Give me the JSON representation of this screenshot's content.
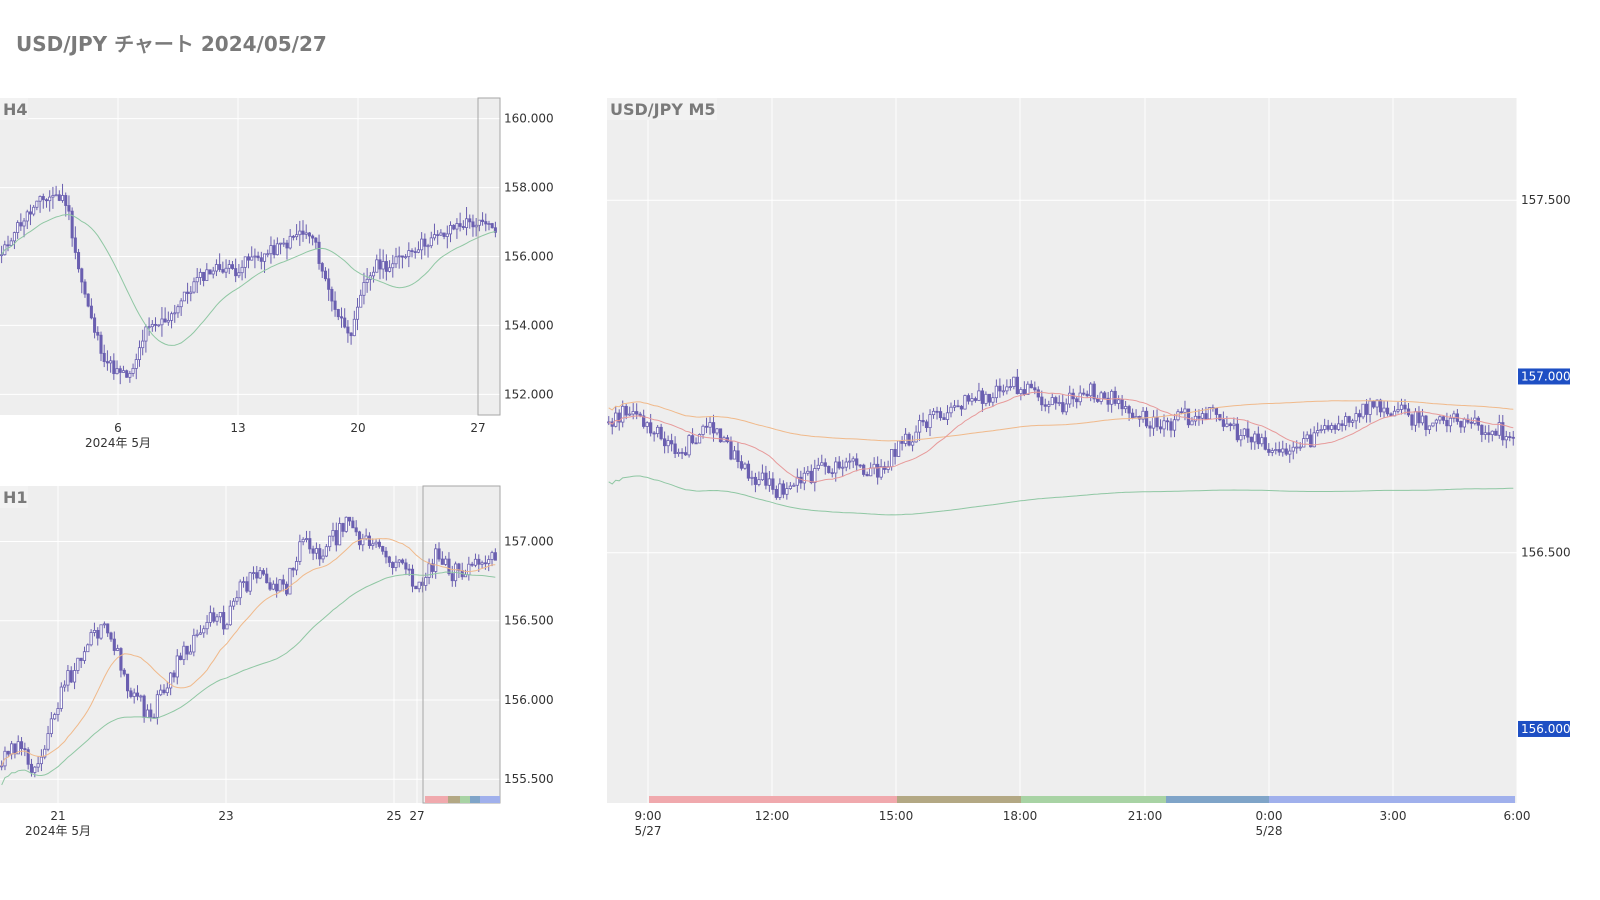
{
  "header": {
    "title": "USD/JPY チャート 2024/05/27"
  },
  "colors": {
    "plot_bg": "#eeeeee",
    "grid": "#ffffff",
    "candle": "#6a5fb0",
    "ma_green": "#8fc7a3",
    "ma_orange": "#f0b98a",
    "ma_red": "#e79a9a",
    "label_bg": "#1e4fc4"
  },
  "chart_data": [
    {
      "id": "h4",
      "type": "candlestick",
      "title": "H4",
      "y_ticks": [
        "160.000",
        "158.000",
        "156.000",
        "154.000",
        "152.000"
      ],
      "y_tick_values": [
        160,
        158,
        156,
        154,
        152
      ],
      "ylim": [
        151.4,
        160.6
      ],
      "x_ticks": [
        "6",
        "13",
        "20",
        "27"
      ],
      "x_sub": "2024年 5月",
      "legend": "none",
      "grid": true,
      "approx_close_path": [
        156.0,
        156.8,
        157.2,
        157.6,
        157.8,
        157.6,
        155.5,
        154.0,
        153.0,
        152.6,
        152.5,
        153.8,
        154.0,
        154.3,
        154.8,
        155.3,
        155.6,
        155.7,
        155.6,
        155.9,
        156.0,
        156.2,
        156.4,
        156.7,
        156.5,
        155.2,
        154.2,
        153.8,
        155.3,
        155.8,
        155.7,
        156.1,
        156.3,
        156.5,
        156.6,
        156.9,
        157.0,
        156.9,
        156.8
      ]
    },
    {
      "id": "h1",
      "type": "candlestick",
      "title": "H1",
      "y_ticks": [
        "157.000",
        "156.500",
        "156.000",
        "155.500"
      ],
      "y_tick_values": [
        157.0,
        156.5,
        156.0,
        155.5
      ],
      "ylim": [
        155.35,
        157.35
      ],
      "x_ticks": [
        "21",
        "23",
        "25",
        "27"
      ],
      "x_sub": "2024年 5月",
      "legend": "none",
      "grid": true,
      "approx_close_path": [
        155.6,
        155.7,
        155.6,
        155.7,
        156.1,
        156.2,
        156.4,
        156.5,
        156.2,
        156.0,
        155.9,
        156.1,
        156.3,
        156.4,
        156.5,
        156.5,
        156.7,
        156.8,
        156.7,
        156.7,
        157.0,
        156.9,
        157.0,
        157.1,
        157.0,
        157.0,
        156.9,
        156.8,
        156.7,
        156.9,
        156.8,
        156.8,
        156.9,
        156.9
      ]
    },
    {
      "id": "m5",
      "type": "candlestick",
      "title": "USD/JPY M5",
      "y_ticks": [
        "157.500",
        "156.500"
      ],
      "y_tick_values": [
        157.5,
        156.5
      ],
      "ylim": [
        155.79,
        157.79
      ],
      "price_labels": [
        "157.000",
        "156.000"
      ],
      "price_label_values": [
        157.0,
        156.0
      ],
      "x_ticks": [
        "9:00",
        "12:00",
        "15:00",
        "18:00",
        "21:00",
        "0:00",
        "3:00",
        "6:00"
      ],
      "x_sub": [
        "5/27",
        "5/28"
      ],
      "session_colors": [
        "#f0a9ad",
        "#b3a884",
        "#a8d3a4",
        "#7fa4c8",
        "#a0b0ec"
      ],
      "legend": "none",
      "grid": true,
      "approx_close_path": [
        156.88,
        156.9,
        156.85,
        156.78,
        156.86,
        156.8,
        156.72,
        156.68,
        156.7,
        156.74,
        156.75,
        156.72,
        156.78,
        156.85,
        156.9,
        156.93,
        156.95,
        156.98,
        156.94,
        156.92,
        156.96,
        156.94,
        156.9,
        156.86,
        156.88,
        156.9,
        156.86,
        156.82,
        156.78,
        156.8,
        156.85,
        156.88,
        156.92,
        156.9,
        156.88,
        156.86,
        156.88,
        156.85,
        156.84
      ]
    }
  ]
}
